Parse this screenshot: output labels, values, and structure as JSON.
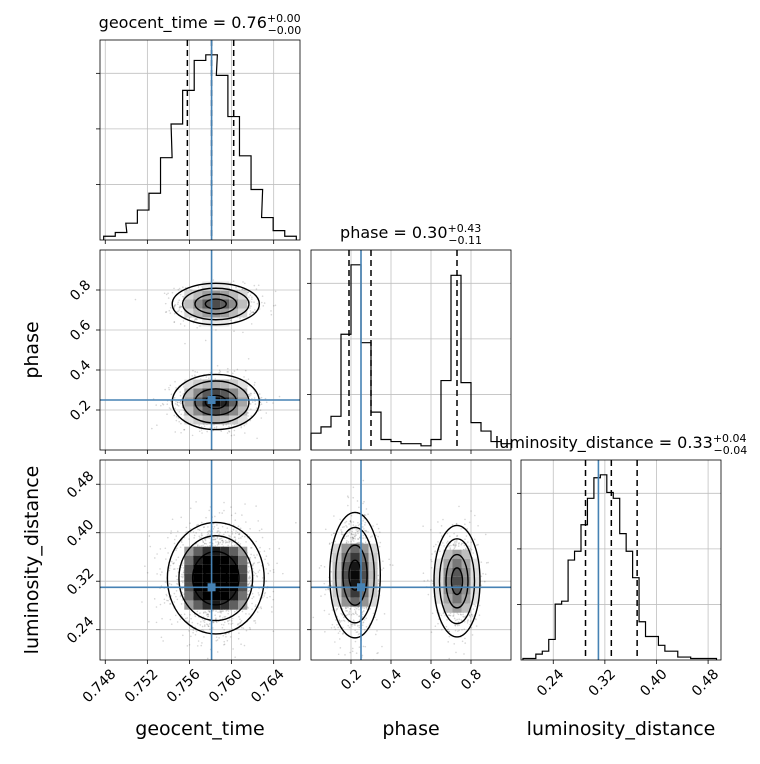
{
  "figure": {
    "colors": {
      "truth": "#4682b4",
      "hist": "#000000",
      "grid": "#c0c0c0",
      "points": "#444444"
    }
  },
  "chart_data": [
    {
      "type": "histogram",
      "parameter": "geocent_time",
      "title": {
        "prefix": "geocent_time = 0.76",
        "plus": "+0.00",
        "minus": "−0.00"
      },
      "xlim": [
        0.7475,
        0.7665
      ],
      "bins": [
        0.7484,
        0.7495,
        0.7505,
        0.7516,
        0.7527,
        0.7538,
        0.7548,
        0.7559,
        0.757,
        0.7581,
        0.7591,
        0.7602,
        0.7613,
        0.7624,
        0.7634,
        0.7645,
        0.7656
      ],
      "counts": [
        2,
        4,
        9,
        16,
        25,
        44,
        62,
        80,
        96,
        99,
        88,
        66,
        45,
        27,
        12,
        5,
        2
      ],
      "quantiles": [
        0.7558,
        0.7581,
        0.7602
      ],
      "truth": 0.7581
    },
    {
      "type": "histogram",
      "parameter": "phase",
      "title": {
        "prefix": "phase = 0.30",
        "plus": "+0.43",
        "minus": "−0.11"
      },
      "xlim": [
        0.0,
        1.0
      ],
      "bins": [
        0.025,
        0.075,
        0.125,
        0.175,
        0.225,
        0.275,
        0.325,
        0.375,
        0.425,
        0.475,
        0.525,
        0.575,
        0.625,
        0.675,
        0.725,
        0.775,
        0.825,
        0.875,
        0.925,
        0.975
      ],
      "counts": [
        8,
        11,
        16,
        55,
        88,
        51,
        18,
        5,
        4,
        3,
        3,
        2,
        5,
        33,
        83,
        32,
        13,
        9,
        4,
        3
      ],
      "quantiles": [
        0.19,
        0.3,
        0.73
      ],
      "truth": 0.25
    },
    {
      "type": "histogram",
      "parameter": "luminosity_distance",
      "title": {
        "prefix": "luminosity_distance = 0.33",
        "plus": "+0.04",
        "minus": "−0.04"
      },
      "xlim": [
        0.19,
        0.5
      ],
      "bins": [
        0.198,
        0.208,
        0.218,
        0.228,
        0.238,
        0.248,
        0.258,
        0.268,
        0.278,
        0.288,
        0.298,
        0.308,
        0.318,
        0.328,
        0.338,
        0.348,
        0.358,
        0.368,
        0.378,
        0.388,
        0.398,
        0.408,
        0.418,
        0.428,
        0.438,
        0.448,
        0.458,
        0.468,
        0.478,
        0.488
      ],
      "counts": [
        0.5,
        0.5,
        2,
        3,
        7,
        19,
        20,
        34,
        37,
        46,
        55,
        62,
        63,
        57,
        55,
        43,
        37,
        28,
        13,
        8,
        8,
        5,
        3,
        3,
        1,
        1,
        0.5,
        0.5,
        0.5,
        0.5
      ],
      "quantiles": [
        0.29,
        0.33,
        0.37
      ],
      "truth": 0.31
    },
    {
      "type": "scatter",
      "x": "geocent_time",
      "y": "phase",
      "xlim": [
        0.7475,
        0.7665
      ],
      "ylim": [
        0.0,
        1.0
      ],
      "modes": [
        {
          "x": 0.7585,
          "y": 0.73,
          "sx": 0.0018,
          "sy": 0.045,
          "weight": 0.42
        },
        {
          "x": 0.7585,
          "y": 0.24,
          "sx": 0.0018,
          "sy": 0.06,
          "weight": 0.58
        }
      ],
      "truth": [
        0.7581,
        0.25
      ]
    },
    {
      "type": "scatter",
      "x": "geocent_time",
      "y": "luminosity_distance",
      "xlim": [
        0.7475,
        0.7665
      ],
      "ylim": [
        0.19,
        0.52
      ],
      "modes": [
        {
          "x": 0.7585,
          "y": 0.325,
          "sx": 0.002,
          "sy": 0.04,
          "weight": 1.0
        }
      ],
      "truth": [
        0.7581,
        0.31
      ]
    },
    {
      "type": "scatter",
      "x": "phase",
      "y": "luminosity_distance",
      "xlim": [
        0.0,
        1.0
      ],
      "ylim": [
        0.19,
        0.52
      ],
      "modes": [
        {
          "x": 0.22,
          "y": 0.33,
          "sx": 0.055,
          "sy": 0.045,
          "weight": 0.58
        },
        {
          "x": 0.73,
          "y": 0.32,
          "sx": 0.05,
          "sy": 0.04,
          "weight": 0.42
        }
      ],
      "truth": [
        0.25,
        0.31
      ]
    }
  ],
  "axes": {
    "geocent_time": {
      "label": "geocent_time",
      "ticks": [
        0.748,
        0.752,
        0.756,
        0.76,
        0.764
      ],
      "tick_labels": [
        "0.748",
        "0.752",
        "0.756",
        "0.760",
        "0.764"
      ]
    },
    "phase": {
      "label": "phase",
      "ticks": [
        0.2,
        0.4,
        0.6,
        0.8
      ],
      "tick_labels": [
        "0.2",
        "0.4",
        "0.6",
        "0.8"
      ]
    },
    "luminosity_distance": {
      "label": "luminosity_distance",
      "ticks": [
        0.24,
        0.32,
        0.4,
        0.48
      ],
      "tick_labels": [
        "0.24",
        "0.32",
        "0.40",
        "0.48"
      ]
    }
  }
}
